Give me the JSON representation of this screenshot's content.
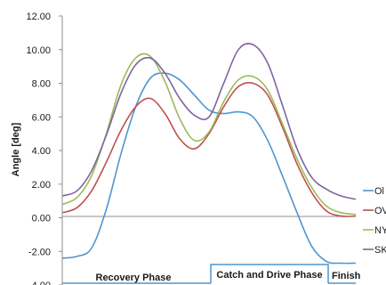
{
  "chart_data": {
    "type": "line",
    "ylabel": "Angle [deg]",
    "ylim": [
      -4,
      12
    ],
    "y_ticks": [
      "-4.00",
      "-2.00",
      "0.00",
      "2.00",
      "4.00",
      "6.00",
      "8.00",
      "10.00",
      "12.00"
    ],
    "grid": false,
    "legend_position": "right",
    "x": [
      0,
      5,
      10,
      15,
      20,
      25,
      30,
      35,
      40,
      45,
      50,
      55,
      60,
      65,
      70,
      75,
      80,
      85,
      90,
      95,
      100
    ],
    "series": [
      {
        "name": "Ol",
        "color": "#4f95cf",
        "values": [
          -2.4,
          -2.3,
          -1.8,
          0.5,
          3.8,
          6.6,
          8.3,
          8.6,
          8.2,
          7.3,
          6.4,
          6.2,
          6.3,
          6.0,
          4.6,
          2.5,
          0.3,
          -1.7,
          -2.6,
          -2.7,
          -2.7
        ]
      },
      {
        "name": "OV",
        "color": "#c0504d",
        "values": [
          0.3,
          0.6,
          1.6,
          3.3,
          5.2,
          6.6,
          7.1,
          6.2,
          4.7,
          4.1,
          5.0,
          6.6,
          7.8,
          8.0,
          7.3,
          5.4,
          3.2,
          1.5,
          0.4,
          0.1,
          0.1
        ]
      },
      {
        "name": "NY",
        "color": "#9bbb59",
        "values": [
          0.8,
          1.2,
          2.5,
          5.0,
          7.9,
          9.5,
          9.6,
          8.1,
          5.9,
          4.6,
          5.1,
          6.9,
          8.2,
          8.4,
          7.6,
          5.6,
          3.5,
          1.8,
          0.7,
          0.3,
          0.2
        ]
      },
      {
        "name": "SK",
        "color": "#8064a2",
        "values": [
          1.3,
          1.6,
          2.8,
          4.9,
          7.4,
          9.1,
          9.5,
          8.6,
          7.1,
          6.1,
          6.0,
          8.0,
          10.0,
          10.3,
          9.2,
          6.7,
          4.1,
          2.4,
          1.7,
          1.3,
          1.1
        ]
      }
    ],
    "phases": [
      {
        "label": "Recovery Phase"
      },
      {
        "label": "Catch and Drive Phase"
      },
      {
        "label": "Finish"
      }
    ]
  }
}
